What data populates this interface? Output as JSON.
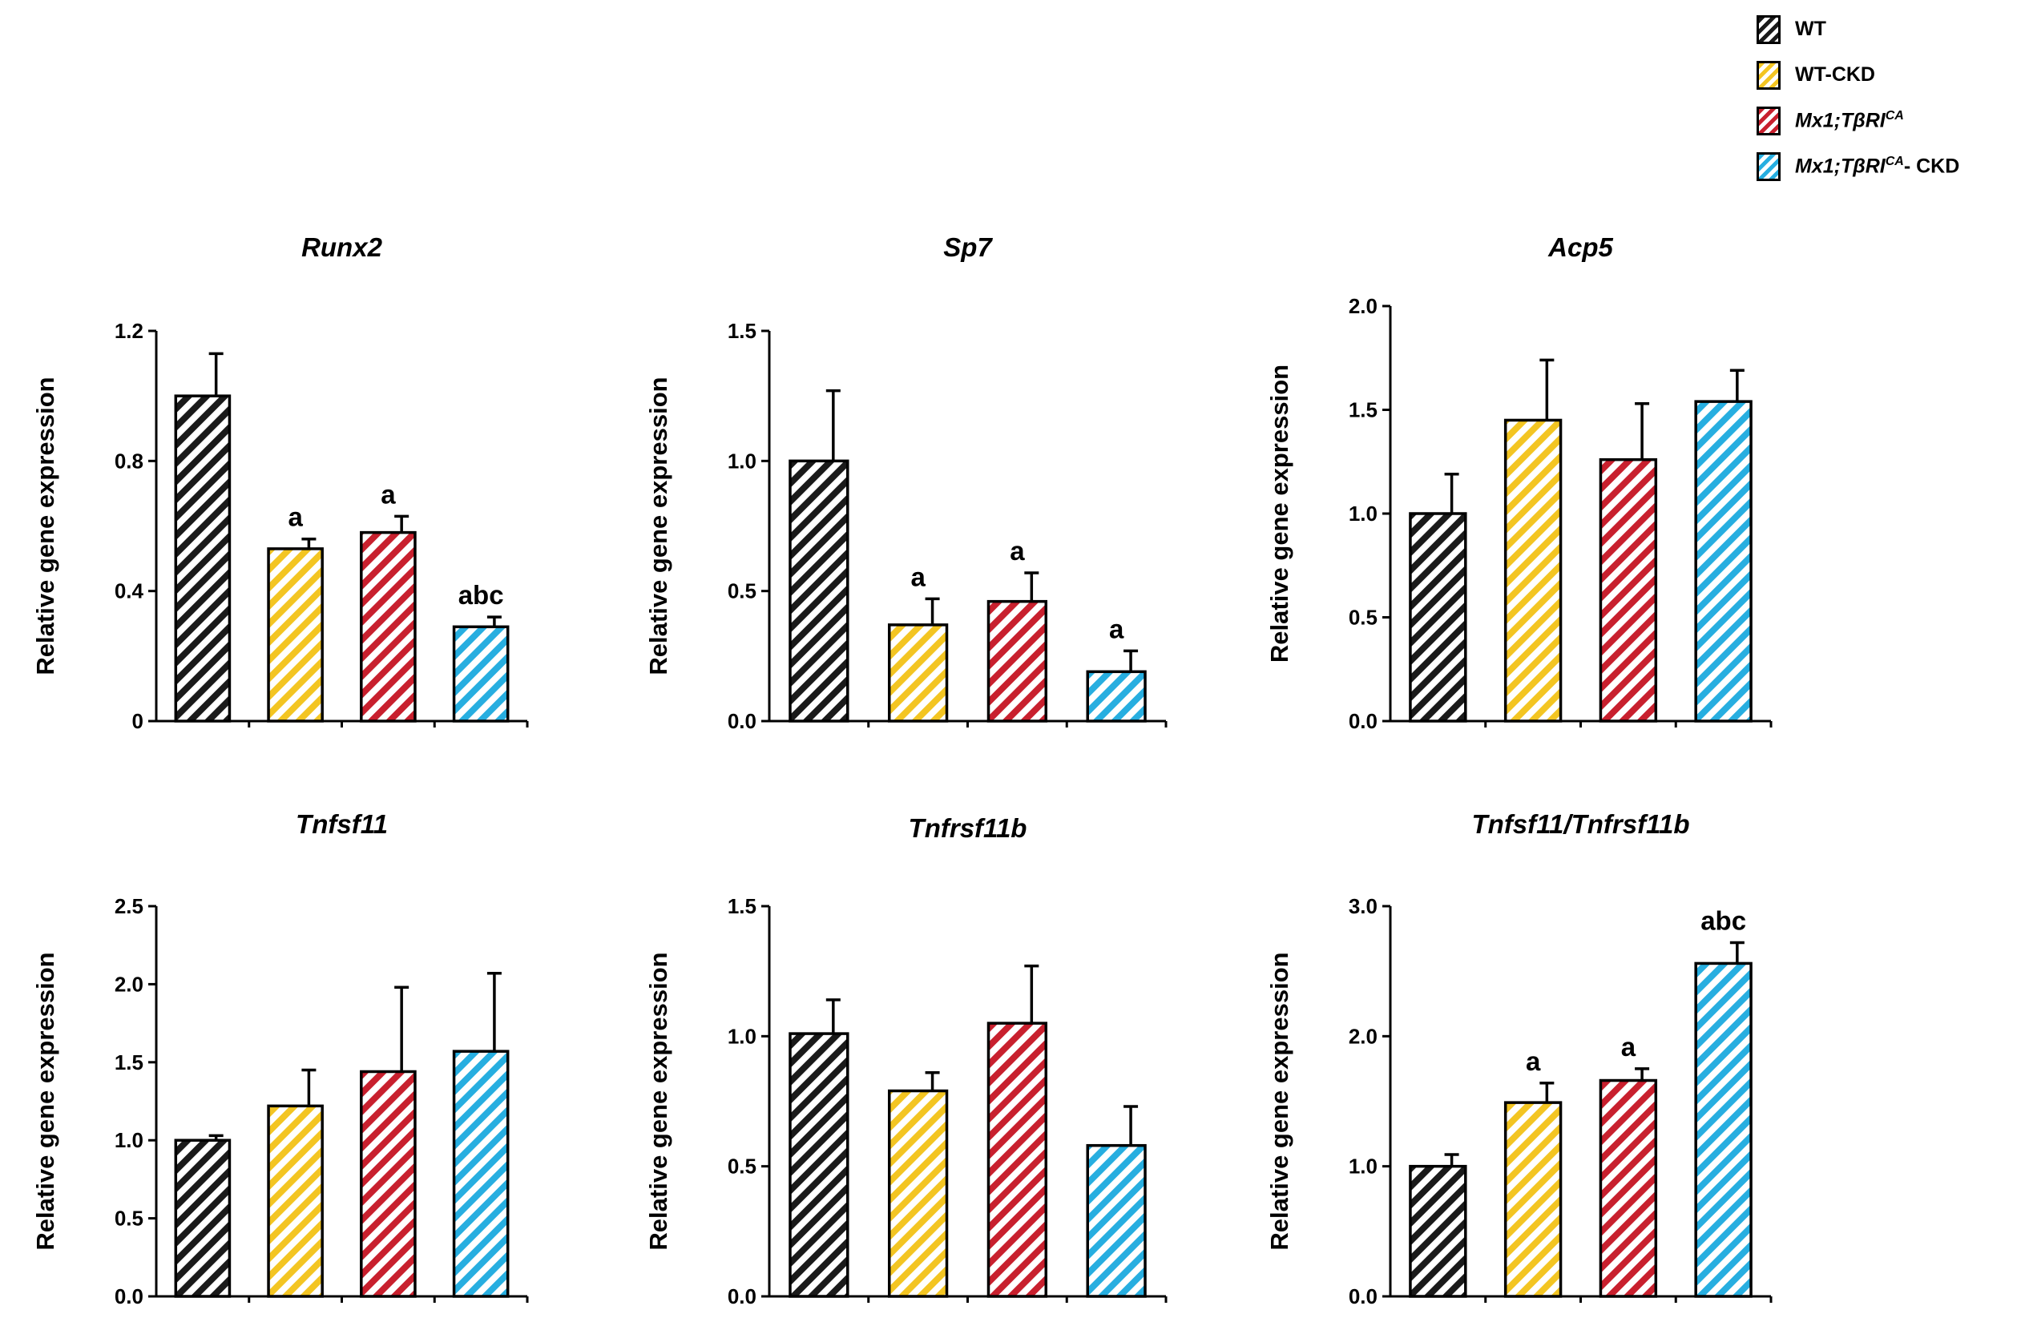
{
  "colors": {
    "WT": "#1a1a1a",
    "WT-CKD": "#f3c522",
    "Mx1_TBRI_CA": "#c8202e",
    "Mx1_TBRI_CA_CKD": "#27aee0",
    "axis": "#000000"
  },
  "legend": {
    "items": [
      {
        "key": "WT",
        "label": "WT",
        "italic_part": "",
        "sup": "",
        "suffix": ""
      },
      {
        "key": "WT-CKD",
        "label": "WT-CKD",
        "italic_part": "",
        "sup": "",
        "suffix": ""
      },
      {
        "key": "Mx1_TBRI_CA",
        "label": "",
        "italic_part": "Mx1;TβRI",
        "sup": "CA",
        "suffix": ""
      },
      {
        "key": "Mx1_TBRI_CA_CKD",
        "label": "",
        "italic_part": "Mx1;TβRI",
        "sup": "CA",
        "suffix": "- CKD"
      }
    ]
  },
  "chart_data": [
    {
      "type": "bar",
      "title": "Runx2",
      "ylabel": "Relative gene expression",
      "ylim": [
        0,
        1.2
      ],
      "ticks": [
        "0",
        "0.4",
        "0.8",
        "1.2"
      ],
      "tick_values": [
        0,
        0.4,
        0.8,
        1.2
      ],
      "categories": [
        "WT",
        "WT-CKD",
        "Mx1;TβRI CA",
        "Mx1;TβRI CA- CKD"
      ],
      "values": [
        1.0,
        0.53,
        0.58,
        0.29
      ],
      "errors": [
        0.13,
        0.03,
        0.05,
        0.03
      ],
      "annotations": [
        "",
        "a",
        "a",
        "abc"
      ]
    },
    {
      "type": "bar",
      "title": "Sp7",
      "ylabel": "Relative gene expression",
      "ylim": [
        0,
        1.5
      ],
      "ticks": [
        "0.0",
        "0.5",
        "1.0",
        "1.5"
      ],
      "tick_values": [
        0,
        0.5,
        1.0,
        1.5
      ],
      "categories": [
        "WT",
        "WT-CKD",
        "Mx1;TβRI CA",
        "Mx1;TβRI CA- CKD"
      ],
      "values": [
        1.0,
        0.37,
        0.46,
        0.19
      ],
      "errors": [
        0.27,
        0.1,
        0.11,
        0.08
      ],
      "annotations": [
        "",
        "a",
        "a",
        "a"
      ]
    },
    {
      "type": "bar",
      "title": "Acp5",
      "ylabel": "Relative gene expression",
      "ylim": [
        0,
        2.0
      ],
      "ticks": [
        "0.0",
        "0.5",
        "1.0",
        "1.5",
        "2.0"
      ],
      "tick_values": [
        0,
        0.5,
        1.0,
        1.5,
        2.0
      ],
      "categories": [
        "WT",
        "WT-CKD",
        "Mx1;TβRI CA",
        "Mx1;TβRI CA- CKD"
      ],
      "values": [
        1.0,
        1.45,
        1.26,
        1.54
      ],
      "errors": [
        0.19,
        0.29,
        0.27,
        0.15
      ],
      "annotations": [
        "",
        "",
        "",
        ""
      ]
    },
    {
      "type": "bar",
      "title": "Tnfsf11",
      "ylabel": "Relative gene expression",
      "ylim": [
        0,
        2.5
      ],
      "ticks": [
        "0.0",
        "0.5",
        "1.0",
        "1.5",
        "2.0",
        "2.5"
      ],
      "tick_values": [
        0,
        0.5,
        1.0,
        1.5,
        2.0,
        2.5
      ],
      "categories": [
        "WT",
        "WT-CKD",
        "Mx1;TβRI CA",
        "Mx1;TβRI CA- CKD"
      ],
      "values": [
        1.0,
        1.22,
        1.44,
        1.57
      ],
      "errors": [
        0.03,
        0.23,
        0.54,
        0.5
      ],
      "annotations": [
        "",
        "",
        "",
        ""
      ]
    },
    {
      "type": "bar",
      "title": "Tnfrsf11b",
      "ylabel": "Relative gene expression",
      "ylim": [
        0,
        1.5
      ],
      "ticks": [
        "0.0",
        "0.5",
        "1.0",
        "1.5"
      ],
      "tick_values": [
        0,
        0.5,
        1.0,
        1.5
      ],
      "categories": [
        "WT",
        "WT-CKD",
        "Mx1;TβRI CA",
        "Mx1;TβRI CA- CKD"
      ],
      "values": [
        1.01,
        0.79,
        1.05,
        0.58
      ],
      "errors": [
        0.13,
        0.07,
        0.22,
        0.15
      ],
      "annotations": [
        "",
        "",
        "",
        ""
      ]
    },
    {
      "type": "bar",
      "title": "Tnfsf11/Tnfrsf11b",
      "ylabel": "Relative gene expression",
      "ylim": [
        0,
        3.0
      ],
      "ticks": [
        "0.0",
        "1.0",
        "2.0",
        "3.0"
      ],
      "tick_values": [
        0,
        1.0,
        2.0,
        3.0
      ],
      "categories": [
        "WT",
        "WT-CKD",
        "Mx1;TβRI CA",
        "Mx1;TβRI CA- CKD"
      ],
      "values": [
        1.0,
        1.49,
        1.66,
        2.56
      ],
      "errors": [
        0.09,
        0.15,
        0.09,
        0.16
      ],
      "annotations": [
        "",
        "a",
        "a",
        "abc"
      ]
    }
  ]
}
